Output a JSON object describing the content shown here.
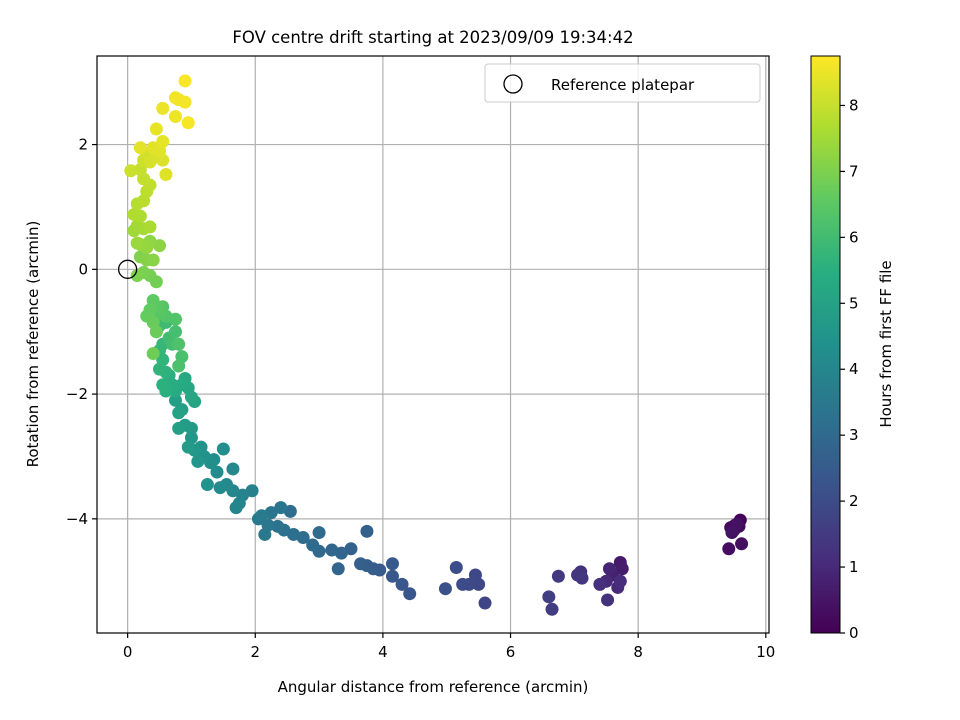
{
  "chart_data": {
    "type": "scatter",
    "title": "FOV centre drift starting at 2023/09/09 19:34:42",
    "xlabel": "Angular distance from reference (arcmin)",
    "ylabel": "Rotation from reference (arcmin)",
    "xlim": [
      -0.48,
      10.05
    ],
    "ylim": [
      -5.83,
      3.42
    ],
    "xticks": [
      0,
      2,
      4,
      6,
      8,
      10
    ],
    "yticks": [
      -4,
      -2,
      0,
      2
    ],
    "grid": true,
    "legend": {
      "placement": "top-right",
      "entries": [
        "Reference platepar"
      ]
    },
    "reference_point": {
      "x": 0,
      "y": 0,
      "marker": "open-circle"
    },
    "colorbar": {
      "label": "Hours from first FF file",
      "colormap": "viridis",
      "min": 0,
      "max": 8.75,
      "ticks": [
        0,
        1,
        2,
        3,
        4,
        5,
        6,
        7,
        8
      ]
    },
    "points": [
      [
        9.6,
        -4.02,
        0.05
      ],
      [
        9.52,
        -4.1,
        0.1
      ],
      [
        9.5,
        -4.18,
        0.15
      ],
      [
        9.45,
        -4.14,
        0.2
      ],
      [
        9.58,
        -4.12,
        0.25
      ],
      [
        9.42,
        -4.48,
        0.3
      ],
      [
        9.62,
        -4.4,
        0.35
      ],
      [
        9.55,
        -4.08,
        0.4
      ],
      [
        9.47,
        -4.22,
        0.45
      ],
      [
        7.72,
        -4.7,
        0.6
      ],
      [
        7.75,
        -4.8,
        0.7
      ],
      [
        7.6,
        -4.9,
        0.8
      ],
      [
        7.55,
        -4.8,
        0.9
      ],
      [
        7.5,
        -5.0,
        1.0
      ],
      [
        7.68,
        -5.1,
        1.05
      ],
      [
        7.72,
        -5.0,
        1.1
      ],
      [
        7.4,
        -5.05,
        1.15
      ],
      [
        7.52,
        -5.3,
        1.2
      ],
      [
        7.1,
        -4.85,
        1.25
      ],
      [
        7.05,
        -4.9,
        1.3
      ],
      [
        7.12,
        -4.95,
        1.35
      ],
      [
        6.75,
        -4.92,
        1.45
      ],
      [
        6.65,
        -5.45,
        1.55
      ],
      [
        6.6,
        -5.25,
        1.6
      ],
      [
        5.6,
        -5.35,
        1.8
      ],
      [
        5.5,
        -5.05,
        1.85
      ],
      [
        5.45,
        -4.9,
        1.9
      ],
      [
        5.35,
        -5.05,
        1.95
      ],
      [
        5.25,
        -5.05,
        2.0
      ],
      [
        5.15,
        -4.78,
        2.05
      ],
      [
        4.98,
        -5.12,
        2.15
      ],
      [
        4.42,
        -5.2,
        2.3
      ],
      [
        4.3,
        -5.05,
        2.35
      ],
      [
        4.15,
        -4.92,
        2.4
      ],
      [
        4.15,
        -4.72,
        2.45
      ],
      [
        3.95,
        -4.82,
        2.5
      ],
      [
        3.85,
        -4.8,
        2.55
      ],
      [
        3.75,
        -4.75,
        2.6
      ],
      [
        3.65,
        -4.72,
        2.65
      ],
      [
        3.75,
        -4.2,
        2.7
      ],
      [
        3.5,
        -4.48,
        2.75
      ],
      [
        3.35,
        -4.55,
        2.8
      ],
      [
        3.3,
        -4.8,
        2.85
      ],
      [
        3.2,
        -4.5,
        2.9
      ],
      [
        3.0,
        -4.52,
        2.95
      ],
      [
        3.0,
        -4.22,
        3.0
      ],
      [
        2.9,
        -4.42,
        3.05
      ],
      [
        2.75,
        -4.3,
        3.1
      ],
      [
        2.55,
        -3.88,
        3.15
      ],
      [
        2.6,
        -4.25,
        3.2
      ],
      [
        2.45,
        -4.18,
        3.25
      ],
      [
        2.35,
        -4.12,
        3.3
      ],
      [
        2.4,
        -3.82,
        3.35
      ],
      [
        2.25,
        -3.9,
        3.4
      ],
      [
        2.2,
        -4.1,
        3.45
      ],
      [
        2.15,
        -4.25,
        3.5
      ],
      [
        2.05,
        -4.0,
        3.55
      ],
      [
        2.1,
        -3.95,
        3.6
      ],
      [
        1.95,
        -3.55,
        3.8
      ],
      [
        1.8,
        -3.62,
        3.85
      ],
      [
        1.75,
        -3.75,
        3.9
      ],
      [
        1.7,
        -3.82,
        3.95
      ],
      [
        1.65,
        -3.55,
        4.0
      ],
      [
        1.65,
        -3.2,
        4.05
      ],
      [
        1.55,
        -3.45,
        4.1
      ],
      [
        1.45,
        -3.5,
        4.15
      ],
      [
        1.4,
        -3.25,
        4.2
      ],
      [
        1.35,
        -3.05,
        4.25
      ],
      [
        1.5,
        -2.88,
        4.3
      ],
      [
        1.3,
        -3.1,
        4.35
      ],
      [
        1.25,
        -3.45,
        4.4
      ],
      [
        1.2,
        -3.0,
        4.45
      ],
      [
        1.15,
        -2.85,
        4.5
      ],
      [
        1.1,
        -3.08,
        4.55
      ],
      [
        1.05,
        -2.9,
        4.6
      ],
      [
        1.0,
        -2.7,
        4.65
      ],
      [
        1.0,
        -2.55,
        4.7
      ],
      [
        0.95,
        -2.85,
        4.75
      ],
      [
        0.9,
        -2.5,
        4.8
      ],
      [
        0.85,
        -2.25,
        4.85
      ],
      [
        0.8,
        -2.55,
        4.9
      ],
      [
        0.75,
        -2.1,
        4.95
      ],
      [
        0.8,
        -2.3,
        5.0
      ],
      [
        1.05,
        -2.12,
        5.1
      ],
      [
        1.0,
        -2.05,
        5.15
      ],
      [
        0.95,
        -1.9,
        5.2
      ],
      [
        0.9,
        -1.75,
        5.25
      ],
      [
        0.85,
        -1.85,
        5.3
      ],
      [
        0.75,
        -1.95,
        5.35
      ],
      [
        0.7,
        -1.85,
        5.4
      ],
      [
        0.65,
        -1.7,
        5.45
      ],
      [
        0.6,
        -1.95,
        5.5
      ],
      [
        0.55,
        -1.85,
        5.55
      ],
      [
        0.6,
        -1.65,
        5.6
      ],
      [
        0.5,
        -1.6,
        5.65
      ],
      [
        0.55,
        -1.45,
        5.7
      ],
      [
        0.5,
        -1.3,
        5.75
      ],
      [
        0.55,
        -1.2,
        5.8
      ],
      [
        0.45,
        -1.0,
        5.85
      ],
      [
        0.5,
        -0.9,
        5.9
      ],
      [
        0.6,
        -0.85,
        5.95
      ],
      [
        0.65,
        -1.1,
        6.0
      ],
      [
        0.7,
        -1.2,
        6.05
      ],
      [
        0.75,
        -1.0,
        6.1
      ],
      [
        0.85,
        -1.4,
        6.15
      ],
      [
        0.8,
        -1.55,
        6.2
      ],
      [
        0.8,
        -1.2,
        6.25
      ],
      [
        0.75,
        -0.8,
        6.3
      ],
      [
        0.6,
        -0.75,
        6.35
      ],
      [
        0.55,
        -0.6,
        6.4
      ],
      [
        0.5,
        -0.7,
        6.45
      ],
      [
        0.45,
        -0.6,
        6.5
      ],
      [
        0.4,
        -0.5,
        6.55
      ],
      [
        0.35,
        -0.65,
        6.6
      ],
      [
        0.3,
        -0.75,
        6.65
      ],
      [
        0.4,
        -0.85,
        6.7
      ],
      [
        0.45,
        -1.0,
        6.75
      ],
      [
        0.4,
        -1.35,
        6.8
      ],
      [
        0.45,
        -0.2,
        6.85
      ],
      [
        0.35,
        -0.1,
        6.9
      ],
      [
        0.25,
        -0.05,
        6.95
      ],
      [
        0.15,
        -0.1,
        7.0
      ],
      [
        0.2,
        0.2,
        7.05
      ],
      [
        0.3,
        0.15,
        7.1
      ],
      [
        0.4,
        0.15,
        7.15
      ],
      [
        0.5,
        0.38,
        7.2
      ],
      [
        0.35,
        0.45,
        7.25
      ],
      [
        0.3,
        0.35,
        7.3
      ],
      [
        0.2,
        0.4,
        7.35
      ],
      [
        0.15,
        0.42,
        7.4
      ],
      [
        0.1,
        0.62,
        7.45
      ],
      [
        0.15,
        0.7,
        7.5
      ],
      [
        0.25,
        0.65,
        7.55
      ],
      [
        0.35,
        0.68,
        7.6
      ],
      [
        0.2,
        0.85,
        7.65
      ],
      [
        0.1,
        0.88,
        7.7
      ],
      [
        0.15,
        1.05,
        7.75
      ],
      [
        0.25,
        1.1,
        7.8
      ],
      [
        0.3,
        1.25,
        7.85
      ],
      [
        0.35,
        1.35,
        7.9
      ],
      [
        0.25,
        1.45,
        7.95
      ],
      [
        0.2,
        1.6,
        8.0
      ],
      [
        0.05,
        1.58,
        8.05
      ],
      [
        0.25,
        1.75,
        8.1
      ],
      [
        0.3,
        1.85,
        8.15
      ],
      [
        0.35,
        1.72,
        8.2
      ],
      [
        0.45,
        1.8,
        8.25
      ],
      [
        0.55,
        1.75,
        8.3
      ],
      [
        0.6,
        1.52,
        8.32
      ],
      [
        0.5,
        1.9,
        8.35
      ],
      [
        0.4,
        1.95,
        8.38
      ],
      [
        0.2,
        1.95,
        8.4
      ],
      [
        0.55,
        2.05,
        8.42
      ],
      [
        0.45,
        2.25,
        8.45
      ],
      [
        0.55,
        2.58,
        8.5
      ],
      [
        0.75,
        2.45,
        8.55
      ],
      [
        0.8,
        2.72,
        8.58
      ],
      [
        0.75,
        2.75,
        8.6
      ],
      [
        0.9,
        2.68,
        8.63
      ],
      [
        0.95,
        2.35,
        8.66
      ],
      [
        0.9,
        3.02,
        8.7
      ]
    ]
  }
}
